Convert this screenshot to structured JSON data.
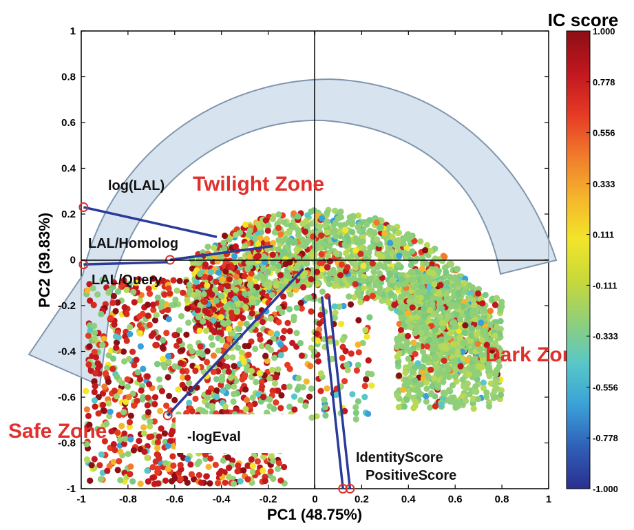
{
  "chart_data": {
    "type": "scatter",
    "xlabel": "PC1 (48.75%)",
    "ylabel": "PC2 (39.83%)",
    "xlim": [
      -1,
      1
    ],
    "ylim": [
      -1,
      1
    ],
    "xticks": [
      "-1",
      "-0.8",
      "-0.6",
      "-0.4",
      "-0.2",
      "0",
      "0.2",
      "0.4",
      "0.6",
      "0.8",
      "1"
    ],
    "yticks": [
      "1",
      "0.8",
      "0.6",
      "0.4",
      "0.2",
      "0",
      "-0.2",
      "-0.4",
      "-0.6",
      "-0.8",
      "-1"
    ],
    "colorbar": {
      "title": "IC score",
      "range": [
        -1,
        1
      ],
      "ticks": [
        "1.000",
        "0.778",
        "0.556",
        "0.333",
        "0.111",
        "-0.111",
        "-0.333",
        "-0.556",
        "-0.778",
        "-1.000"
      ],
      "colors": [
        "#2a2f8f",
        "#2f5fb8",
        "#3aa0d8",
        "#58c7c8",
        "#8fcf7a",
        "#c8d83a",
        "#f2e52a",
        "#f5b52c",
        "#f07b2c",
        "#e53a25",
        "#c1171e",
        "#8b0f14"
      ]
    },
    "zones": [
      {
        "label": "Twilight Zone",
        "x": -0.05,
        "y": 0.32
      },
      {
        "label": "Dark Zone",
        "x": 0.88,
        "y": -0.41
      },
      {
        "label": "Safe Zone",
        "x": -1.0,
        "y": -0.75
      }
    ],
    "loadings": [
      {
        "label": "log(LAL)",
        "x": -0.99,
        "y": 0.23
      },
      {
        "label": "LAL/Homolog",
        "x": -0.62,
        "y": 0.06
      },
      {
        "label": "LAL/Query",
        "x": -0.99,
        "y": -0.02
      },
      {
        "label": "-logEval",
        "x": -0.63,
        "y": -0.68
      },
      {
        "label": "IdentityScore",
        "x": 0.12,
        "y": -1.0
      },
      {
        "label": "PositiveScore",
        "x": 0.15,
        "y": -1.0
      }
    ],
    "point_clusters": [
      {
        "region": "upper arc (Twilight Zone)",
        "x_range": [
          -0.5,
          0.45
        ],
        "y_range": [
          -0.05,
          0.24
        ],
        "dominant_color": "#8fcf7a"
      },
      {
        "region": "right arc (Dark Zone)",
        "x_range": [
          0.3,
          0.8
        ],
        "y_range": [
          -0.65,
          0.05
        ],
        "dominant_color": "#8fcf7a"
      },
      {
        "region": "lower-left (Safe Zone)",
        "x_range": [
          -1.0,
          -0.2
        ],
        "y_range": [
          -1.0,
          -0.1
        ],
        "dominant_color": "#c1171e"
      }
    ],
    "grid": false,
    "arrow": "curved arrow from right (Dark Zone) over top to left (Safe Zone)"
  }
}
